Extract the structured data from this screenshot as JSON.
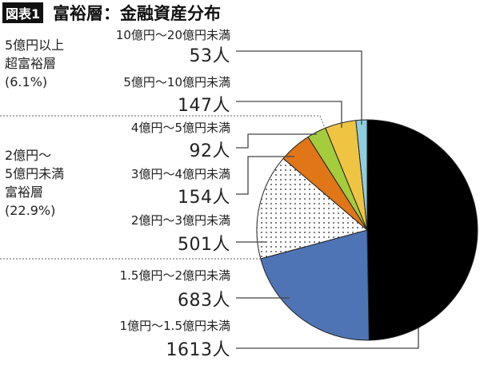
{
  "badge": "図表1",
  "title": "富裕層：金融資産分布",
  "groups": [
    {
      "lines": [
        "5億円以上",
        "超富裕層",
        "(6.1%)"
      ]
    },
    {
      "lines": [
        "2億円～",
        "5億円未満",
        "富裕層",
        "(22.9%)"
      ]
    }
  ],
  "chart_data": {
    "type": "pie",
    "title": "富裕層：金融資産分布",
    "start": "top",
    "direction": "clockwise",
    "slices": [
      {
        "label": "1億円～1.5億円未満",
        "value": 1613,
        "value_label": "1613人",
        "color": "#000000"
      },
      {
        "label": "1.5億円～2億円未満",
        "value": 683,
        "value_label": "683人",
        "color": "#4f74b5"
      },
      {
        "label": "2億円～3億円未満",
        "value": 501,
        "value_label": "501人",
        "color": "dotted"
      },
      {
        "label": "3億円～4億円未満",
        "value": 154,
        "value_label": "154人",
        "color": "#e07617"
      },
      {
        "label": "4億円～5億円未満",
        "value": 92,
        "value_label": "92人",
        "color": "#a4cc3c"
      },
      {
        "label": "5億円～10億円未満",
        "value": 147,
        "value_label": "147人",
        "color": "#efc443"
      },
      {
        "label": "10億円～20億円未満",
        "value": 53,
        "value_label": "53人",
        "color": "#8fcde0"
      }
    ]
  }
}
